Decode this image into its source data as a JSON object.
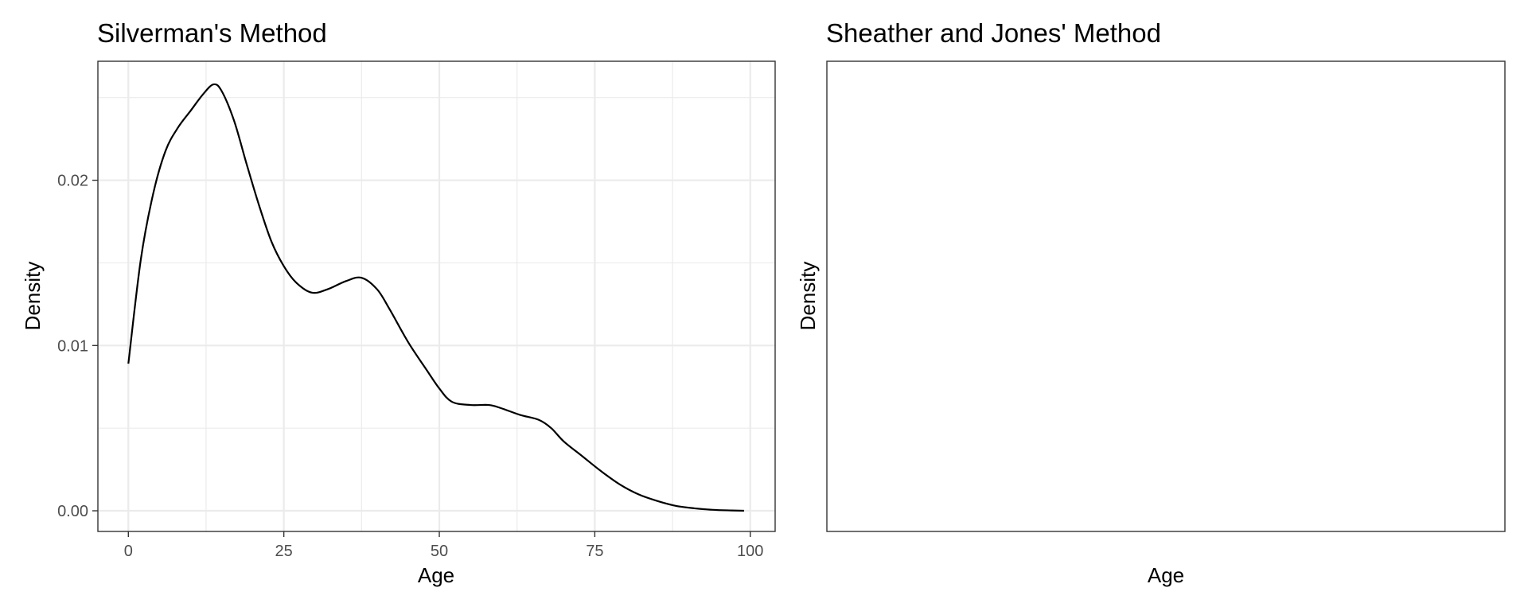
{
  "chart_data": [
    {
      "type": "line",
      "title": "Silverman's Method",
      "xlabel": "Age",
      "ylabel": "Density",
      "xlim": [
        -4.9,
        104
      ],
      "ylim": [
        -0.00125,
        0.0272
      ],
      "x_ticks": [
        0,
        25,
        50,
        75,
        100
      ],
      "x_tick_labels": [
        "0",
        "25",
        "50",
        "75",
        "100"
      ],
      "y_ticks": [
        0.0,
        0.01,
        0.02
      ],
      "y_tick_labels": [
        "0.00",
        "0.01",
        "0.02"
      ],
      "grid": true,
      "series": [
        {
          "x": [
            0,
            2,
            4,
            6,
            8,
            10,
            12,
            13.7,
            15,
            17,
            19,
            21,
            23,
            25,
            27,
            29.5,
            32,
            35,
            37.5,
            40,
            42,
            45,
            48,
            50,
            52,
            55,
            58,
            60,
            63,
            66,
            68,
            70,
            73,
            76,
            79,
            82,
            85,
            88,
            91,
            94,
            97,
            99
          ],
          "y": [
            0.0089,
            0.0152,
            0.0192,
            0.0218,
            0.0232,
            0.0242,
            0.0252,
            0.0258,
            0.0254,
            0.0236,
            0.021,
            0.0185,
            0.0163,
            0.0148,
            0.0138,
            0.0132,
            0.0134,
            0.0139,
            0.0141,
            0.0134,
            0.0122,
            0.0102,
            0.0085,
            0.0074,
            0.0066,
            0.0064,
            0.0064,
            0.0062,
            0.0058,
            0.0055,
            0.005,
            0.0042,
            0.0033,
            0.0024,
            0.0016,
            0.001,
            0.0006,
            0.0003,
            0.00015,
            6e-05,
            2e-05,
            0.0
          ]
        }
      ]
    },
    {
      "type": "line",
      "title": "Sheather and Jones' Method",
      "xlabel": "Age",
      "ylabel": "Density",
      "grid": false,
      "series": []
    }
  ]
}
